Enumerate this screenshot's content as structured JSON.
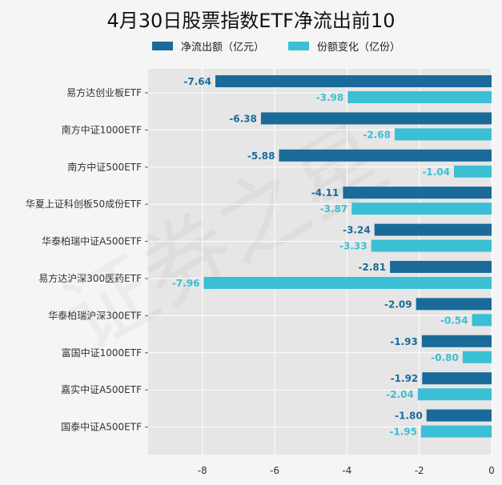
{
  "chart_data": {
    "type": "bar",
    "orientation": "horizontal",
    "title": "4月30日股票指数ETF净流出前10",
    "categories": [
      "易方达创业板ETF",
      "南方中证1000ETF",
      "南方中证500ETF",
      "华夏上证科创板50成份ETF",
      "华泰柏瑞中证A500ETF",
      "易方达沪深300医药ETF",
      "华泰柏瑞沪深300ETF",
      "富国中证1000ETF",
      "嘉实中证A500ETF",
      "国泰中证A500ETF"
    ],
    "series": [
      {
        "name": "净流出额（亿元）",
        "color": "#1a6b9a",
        "values": [
          -7.64,
          -6.38,
          -5.88,
          -4.11,
          -3.24,
          -2.81,
          -2.09,
          -1.93,
          -1.92,
          -1.8
        ]
      },
      {
        "name": "份额变化（亿份）",
        "color": "#3bbfd4",
        "values": [
          -3.98,
          -2.68,
          -1.04,
          -3.87,
          -3.33,
          -7.96,
          -0.54,
          -0.8,
          -2.04,
          -1.95
        ]
      }
    ],
    "xlim": [
      -9.5,
      0
    ],
    "xticks": [
      -8,
      -6,
      -4,
      -2,
      0
    ],
    "grid": true,
    "legend": "top",
    "watermark": "证券之星"
  }
}
